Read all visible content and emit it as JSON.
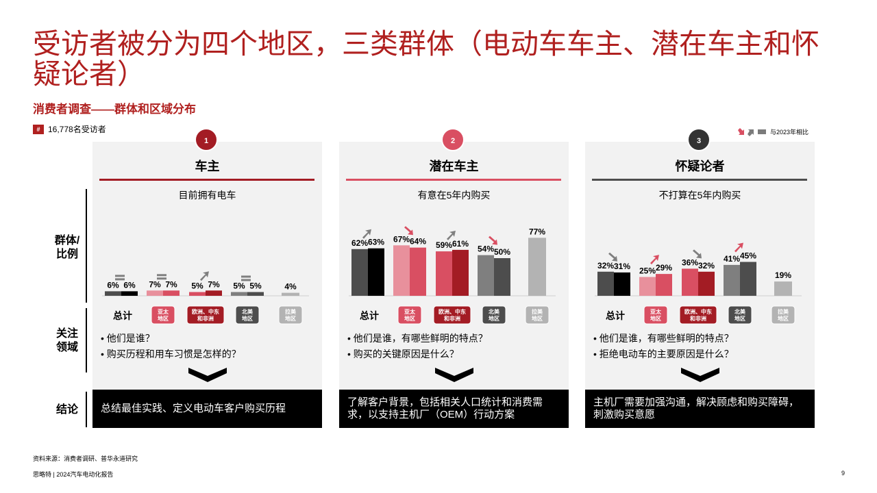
{
  "title": "受访者被分为四个地区，三类群体（电动车车主、潜在车主和怀疑论者）",
  "subtitle": "消费者调查——群体和区域分布",
  "respondents": {
    "hash": "#",
    "text": "16,778名受访者"
  },
  "legend": {
    "text": "与2023年相比"
  },
  "row_labels": {
    "group": "群体/\n比例",
    "focus": "关注\n领域",
    "conclusion": "结论"
  },
  "colors": {
    "red": "#b0201f",
    "pink": "#e8909c",
    "rose": "#d94f62",
    "darkred": "#a31c24",
    "gray": "#7f7f7f",
    "darkgray": "#4d4d4d",
    "lightgray": "#b3b3b3",
    "black": "#000000"
  },
  "categories": [
    "总计",
    "亚太地区",
    "欧洲、中东和非洲",
    "北美地区",
    "拉美地区"
  ],
  "panels": [
    {
      "number": "1",
      "heading": "车主",
      "description": "目前拥有电车",
      "accent": "#a31c24",
      "questions": [
        "他们是谁？",
        "购买历程和用车习惯是怎样的？"
      ],
      "conclusion": "总结最佳实践、定义电动车客户购买历程"
    },
    {
      "number": "2",
      "heading": "潜在车主",
      "description": "有意在5年内购买",
      "accent": "#d94f62",
      "questions": [
        "他们是谁，有哪些鲜明的特点？",
        "购买的关键原因是什么？"
      ],
      "conclusion": "了解客户背景，包括相关人口统计和消费需求，以支持主机厂（OEM）行动方案"
    },
    {
      "number": "3",
      "heading": "怀疑论者",
      "description": "不打算在5年内购买",
      "accent": "#4d4d4d",
      "questions": [
        "他们是谁，有哪些鲜明的特点？",
        "拒绝电动车的主要原因是什么？"
      ],
      "conclusion": "主机厂需要加强沟通，解决顾虑和购买障碍，刺激购买意愿"
    }
  ],
  "chart_data": [
    {
      "type": "bar",
      "title": "车主",
      "categories": [
        "总计",
        "亚太地区",
        "欧洲、中东和非洲",
        "北美地区",
        "拉美地区"
      ],
      "series": [
        {
          "name": "2023",
          "values": [
            6,
            7,
            5,
            5,
            null
          ]
        },
        {
          "name": "2024",
          "values": [
            6,
            7,
            7,
            5,
            4
          ]
        }
      ],
      "trend": [
        "flat",
        "flat",
        "up",
        "flat",
        null
      ],
      "ylim": [
        0,
        100
      ]
    },
    {
      "type": "bar",
      "title": "潜在车主",
      "categories": [
        "总计",
        "亚太地区",
        "欧洲、中东和非洲",
        "北美地区",
        "拉美地区"
      ],
      "series": [
        {
          "name": "2023",
          "values": [
            62,
            67,
            59,
            54,
            null
          ]
        },
        {
          "name": "2024",
          "values": [
            63,
            64,
            61,
            50,
            77
          ]
        }
      ],
      "trend": [
        "up",
        "down",
        "up",
        "down",
        null
      ],
      "ylim": [
        0,
        100
      ]
    },
    {
      "type": "bar",
      "title": "怀疑论者",
      "categories": [
        "总计",
        "亚太地区",
        "欧洲、中东和非洲",
        "北美地区",
        "拉美地区"
      ],
      "series": [
        {
          "name": "2023",
          "values": [
            32,
            25,
            36,
            41,
            null
          ]
        },
        {
          "name": "2024",
          "values": [
            31,
            29,
            32,
            45,
            19
          ]
        }
      ],
      "trend": [
        "down",
        "up",
        "down",
        "up",
        null
      ],
      "ylim": [
        0,
        100
      ]
    }
  ],
  "footer": {
    "source": "资料来源：消费者调研、普华永道研究",
    "report": "思略特 | 2024汽车电动化报告",
    "page": "9"
  }
}
